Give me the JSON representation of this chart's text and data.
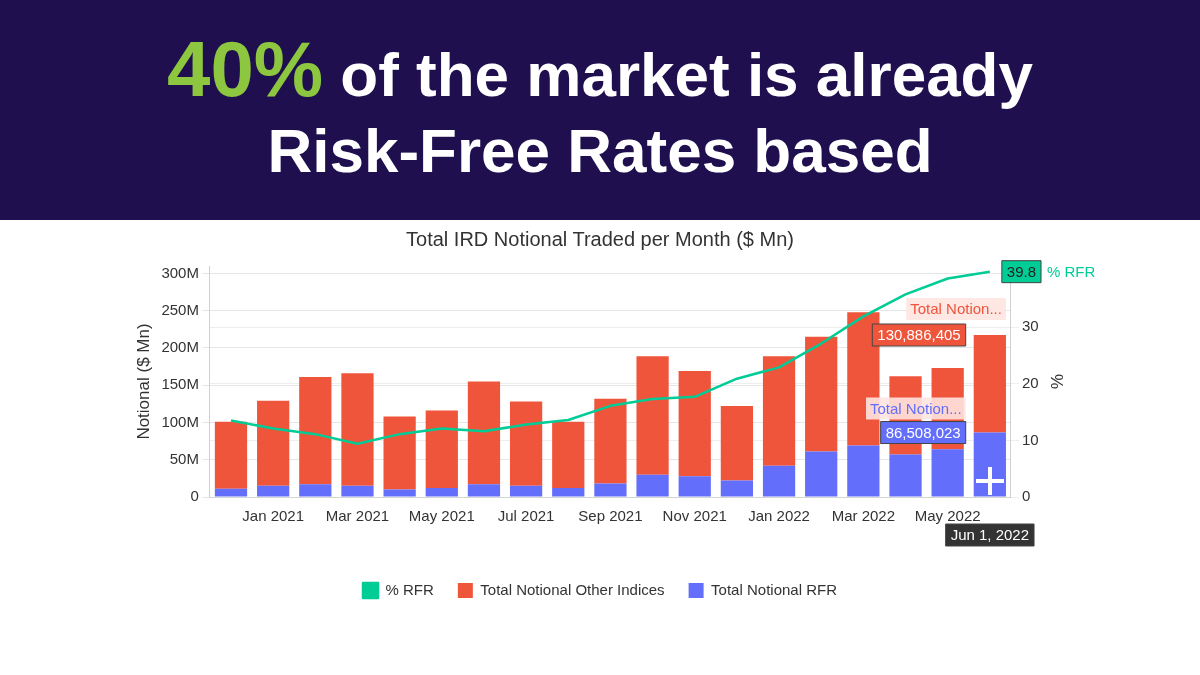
{
  "chart_data": {
    "type": "bar",
    "stacked": true,
    "title": "40% of the market is already Risk-Free Rates based",
    "subtitle": "Total IRD Notional Traded per Month ($ Mn)",
    "ylabel": "Notional ($ Mn)",
    "y2label": "%",
    "categories": [
      null,
      "Jan 2021",
      null,
      "Mar 2021",
      null,
      "May 2021",
      null,
      "Jul 2021",
      null,
      "Sep 2021",
      null,
      "Nov 2021",
      null,
      "Jan 2022",
      null,
      "Mar 2022",
      null,
      "May 2022",
      null
    ],
    "series": [
      {
        "name": "Total Notional RFR",
        "color": "#636efa",
        "values": [
          11,
          15,
          17,
          15,
          10,
          12,
          17,
          15,
          12,
          18,
          30,
          28,
          22,
          42,
          61,
          69,
          57,
          64,
          86.508023
        ]
      },
      {
        "name": "Total Notional Other Indices",
        "color": "#ef553b",
        "values": [
          90,
          114,
          144,
          151,
          98,
          104,
          138,
          113,
          89,
          114,
          159,
          141,
          100,
          147,
          154,
          179,
          105,
          109,
          130.886405
        ]
      },
      {
        "name": "% RFR",
        "type": "line",
        "axis": "y2",
        "color": "#00cc96",
        "values": [
          13.5,
          12.1,
          11.1,
          9.4,
          11.1,
          12.1,
          11.6,
          12.8,
          13.6,
          16.1,
          17.3,
          17.7,
          20.9,
          22.9,
          27.1,
          31.9,
          35.8,
          38.6,
          39.8
        ]
      }
    ],
    "ylim": [
      0,
      310
    ],
    "yticks": [
      {
        "value": 0,
        "label": "0"
      },
      {
        "value": 50,
        "label": "50M"
      },
      {
        "value": 100,
        "label": "100M"
      },
      {
        "value": 150,
        "label": "150M"
      },
      {
        "value": 200,
        "label": "200M"
      },
      {
        "value": 250,
        "label": "250M"
      },
      {
        "value": 300,
        "label": "300M"
      }
    ],
    "y2lim": [
      0,
      40.8
    ],
    "y2ticks": [
      0,
      10,
      20,
      30
    ],
    "grid": "y",
    "legend": "bottom",
    "marker": "none",
    "line_style": "solid",
    "annotations": [
      "Total Notion...",
      "130,886,405",
      "Total Notion...",
      "86,508,023",
      "39.8",
      "% RFR",
      "Jun 1, 2022"
    ]
  }
}
